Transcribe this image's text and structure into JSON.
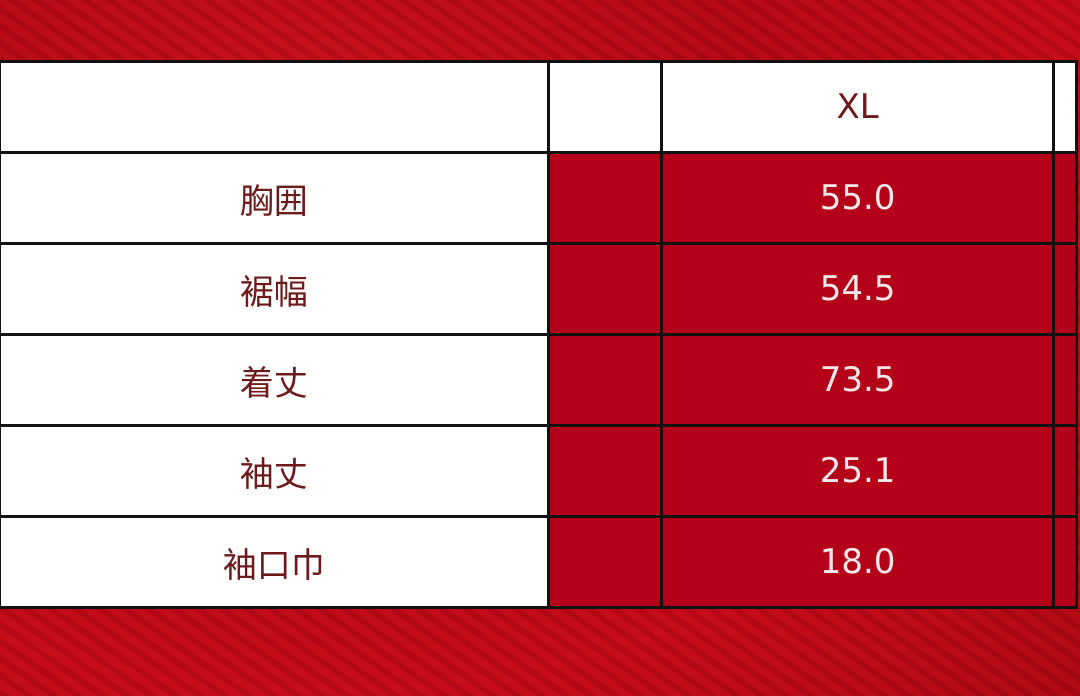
{
  "table": {
    "header": {
      "label": "",
      "empty": "",
      "size": "XL"
    },
    "rows": [
      {
        "label": "胸囲",
        "value": "55.0"
      },
      {
        "label": "裾幅",
        "value": "54.5"
      },
      {
        "label": "着丈",
        "value": "73.5"
      },
      {
        "label": "袖丈",
        "value": "25.1"
      },
      {
        "label": "袖口巾",
        "value": "18.0"
      }
    ]
  },
  "colors": {
    "accent_red": "#b5001a",
    "label_text": "#6e1a1a",
    "value_text": "#f6e8e8"
  }
}
